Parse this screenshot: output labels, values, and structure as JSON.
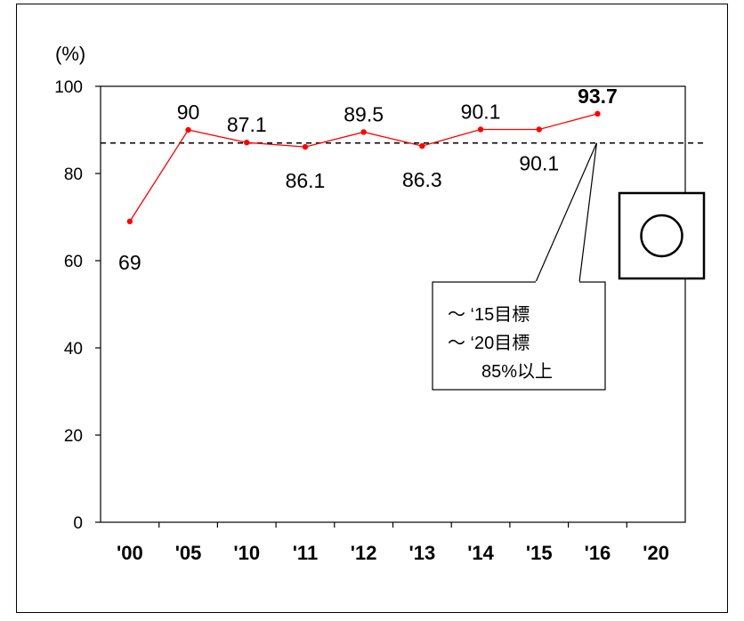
{
  "chart_data": {
    "type": "line",
    "ylabel": "(%)",
    "categories": [
      "'00",
      "'05",
      "'10",
      "'11",
      "'12",
      "'13",
      "'14",
      "'15",
      "'16",
      "'20"
    ],
    "series": [
      {
        "values": [
          69,
          90,
          87.1,
          86.1,
          89.5,
          86.3,
          90.1,
          90.1,
          93.7,
          null
        ],
        "labels": [
          "69",
          "90",
          "87.1",
          "86.1",
          "89.5",
          "86.3",
          "90.1",
          "90.1",
          "93.7",
          ""
        ],
        "color": "#ff0000"
      }
    ],
    "yticks": [
      0,
      20,
      40,
      60,
      80,
      100
    ],
    "ylim": [
      0,
      100
    ],
    "target_line": {
      "value": 87,
      "style": "dashed",
      "color": "#000000"
    },
    "callout": {
      "lines": [
        "～ ‘15目標",
        "～ ‘20目標",
        "85%以上"
      ]
    },
    "badge": {
      "symbol": "○"
    },
    "grid": false
  }
}
